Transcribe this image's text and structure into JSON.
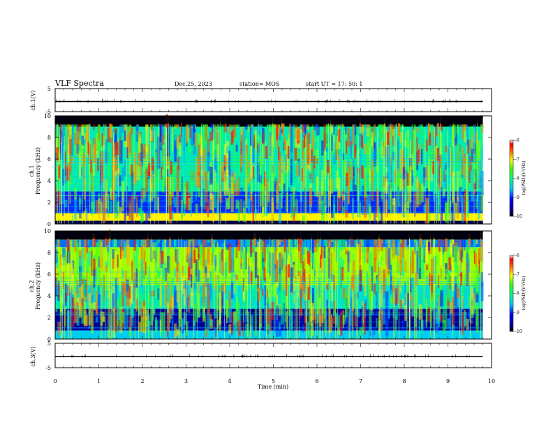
{
  "header": {
    "title": "VLF Spectra",
    "date": "Dec.25, 2023",
    "station": "station= MOS",
    "start": "start  UT =   17: 50: 1"
  },
  "chart_data": [
    {
      "type": "line",
      "panel": "ch1-waveform",
      "ylabel": "ch.1(V)",
      "ylim": [
        -5,
        5
      ],
      "yticks": [
        "5",
        "-5"
      ],
      "x": [
        0,
        2,
        4,
        6,
        8,
        9.8
      ],
      "values": [
        -0.6,
        -0.6,
        -0.6,
        -0.6,
        -0.6,
        -0.6
      ]
    },
    {
      "type": "heatmap",
      "panel": "ch1-spectrogram",
      "ylabel_top": "ch.1",
      "ylabel": "Frequency (kHz)",
      "ylim": [
        0,
        10
      ],
      "yticks": [
        "0",
        "2",
        "4",
        "6",
        "8",
        "10"
      ],
      "xlim": [
        0,
        9.8
      ],
      "colorbar": {
        "label": "log(PSD)(V²/Hz)",
        "range": [
          -10,
          -6
        ],
        "ticks": [
          "-6",
          "-7",
          "-8",
          "-9",
          "-10"
        ]
      },
      "bands_kHz": [
        {
          "range": [
            0,
            0.3
          ],
          "level": -9.8
        },
        {
          "range": [
            0.3,
            1.0
          ],
          "level": -7.0
        },
        {
          "range": [
            1.0,
            3.0
          ],
          "level": -9.0
        },
        {
          "range": [
            3.0,
            9.0
          ],
          "level": -8.2
        },
        {
          "range": [
            9.0,
            10.0
          ],
          "level": -10.0
        }
      ]
    },
    {
      "type": "heatmap",
      "panel": "ch2-spectrogram",
      "ylabel_top": "ch.2",
      "ylabel": "Frequency (kHz)",
      "ylim": [
        0,
        10
      ],
      "yticks": [
        "0",
        "2",
        "4",
        "6",
        "8",
        "10"
      ],
      "xlim": [
        0,
        9.8
      ],
      "colorbar": {
        "label": "log(PSD)(V²/Hz)",
        "range": [
          -10,
          -6
        ],
        "ticks": [
          "-6",
          "-7",
          "-8",
          "-9",
          "-10"
        ]
      },
      "bands_kHz": [
        {
          "range": [
            0,
            0.8
          ],
          "level": -8.5
        },
        {
          "range": [
            0.8,
            2.8
          ],
          "level": -9.6
        },
        {
          "range": [
            2.8,
            5.0
          ],
          "level": -8.3
        },
        {
          "range": [
            5.0,
            8.5
          ],
          "level": -7.3
        },
        {
          "range": [
            8.5,
            9.2
          ],
          "level": -8.8
        },
        {
          "range": [
            9.2,
            10.0
          ],
          "level": -10.0
        }
      ]
    },
    {
      "type": "line",
      "panel": "ch3-waveform",
      "ylabel": "ch.3(V)",
      "ylim": [
        -5,
        5
      ],
      "yticks": [
        "5",
        "-5"
      ],
      "xlabel": "Time (min)",
      "xticks": [
        "0",
        "1",
        "2",
        "3",
        "4",
        "5",
        "6",
        "7",
        "8",
        "9",
        "10"
      ],
      "x": [
        0,
        2,
        4,
        6,
        8,
        9.8
      ],
      "values": [
        -0.4,
        -0.4,
        -0.4,
        -0.4,
        -0.4,
        -0.4
      ]
    }
  ]
}
